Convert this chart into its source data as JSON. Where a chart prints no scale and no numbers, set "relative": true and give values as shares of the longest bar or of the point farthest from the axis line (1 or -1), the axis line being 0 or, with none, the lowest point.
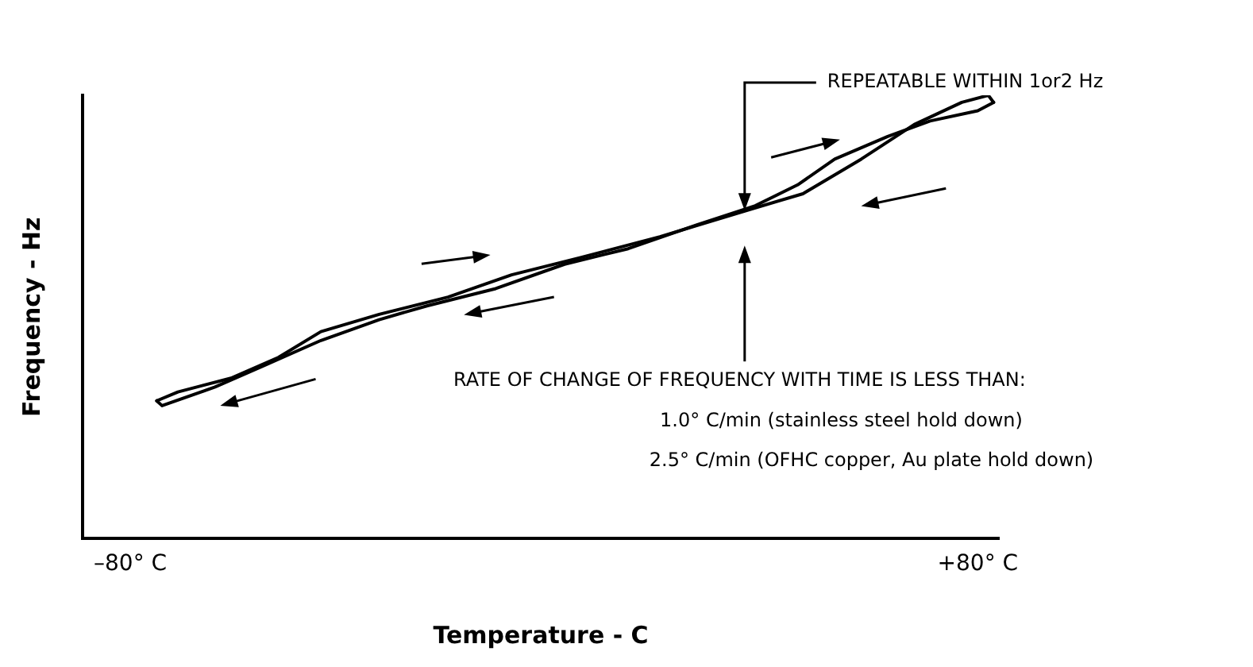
{
  "chart_data": {
    "type": "line",
    "relative": true,
    "xlabel": "Temperature - C",
    "ylabel": "Frequency - Hz",
    "xlim": [
      -89,
      84
    ],
    "xticks": [
      {
        "value": -80,
        "label": "–80° C"
      },
      {
        "value": 80,
        "label": "+80° C"
      }
    ],
    "grid": false,
    "marker": "none",
    "line_style": "solid",
    "series": [
      {
        "color": "#000000",
        "x": [
          -75,
          -71,
          -61,
          -52,
          -44,
          -33,
          -20,
          -8,
          5,
          20,
          36,
          47,
          58,
          68,
          77,
          82,
          83
        ],
        "values": [
          0.311,
          0.331,
          0.362,
          0.409,
          0.467,
          0.506,
          0.545,
          0.595,
          0.634,
          0.681,
          0.739,
          0.778,
          0.856,
          0.934,
          0.984,
          1,
          0.984
        ]
      },
      {
        "color": "#000000",
        "x": [
          -75,
          -74,
          -64,
          -55,
          -44,
          -33,
          -24,
          -11,
          2,
          14,
          27,
          38,
          46,
          53,
          63,
          71,
          80,
          83
        ],
        "values": [
          0.311,
          0.3,
          0.342,
          0.389,
          0.447,
          0.494,
          0.525,
          0.564,
          0.619,
          0.654,
          0.708,
          0.751,
          0.798,
          0.856,
          0.907,
          0.942,
          0.965,
          0.984
        ]
      }
    ],
    "annotations": [
      {
        "text": "REPEATABLE WITHIN 1or2 Hz",
        "x": 36,
        "y": 0.74
      },
      "RATE OF CHANGE OF FREQUENCY WITH TIME IS LESS THAN:",
      "1.0° C/min (stainless steel hold down)",
      "2.5° C/min (OFHC copper, Au plate hold down)"
    ]
  }
}
